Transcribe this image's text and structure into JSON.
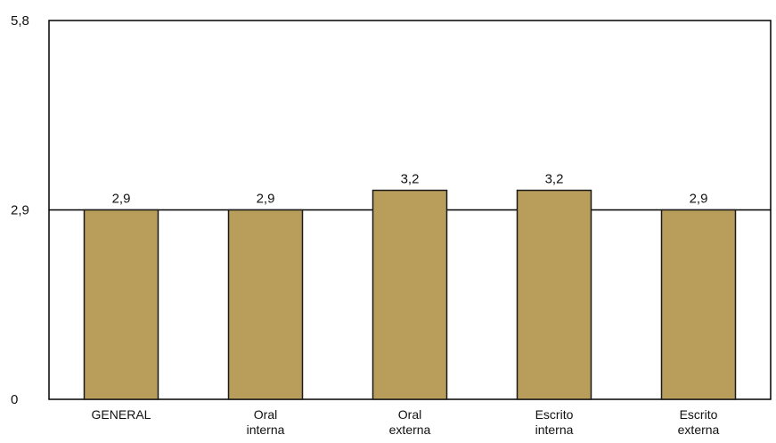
{
  "chart_data": {
    "type": "bar",
    "categories": [
      [
        "GENERAL"
      ],
      [
        "Oral",
        "interna"
      ],
      [
        "Oral",
        "externa"
      ],
      [
        "Escrito",
        "interna"
      ],
      [
        "Escrito",
        "externa"
      ]
    ],
    "values": [
      2.9,
      2.9,
      3.2,
      3.2,
      2.9
    ],
    "data_labels": [
      "2,9",
      "2,9",
      "3,2",
      "3,2",
      "2,9"
    ],
    "ylim": [
      0,
      5.8
    ],
    "yticks": [
      0,
      2.9,
      5.8
    ],
    "ytick_labels": [
      "0",
      "2,9",
      "5,8"
    ],
    "reference_line": 2.9,
    "grid": false,
    "title": "",
    "xlabel": "",
    "ylabel": ""
  },
  "colors": {
    "bar_fill": "#b89e5a",
    "bar_stroke": "#1a1a1a",
    "axis": "#000000",
    "reference_line": "#000000"
  }
}
